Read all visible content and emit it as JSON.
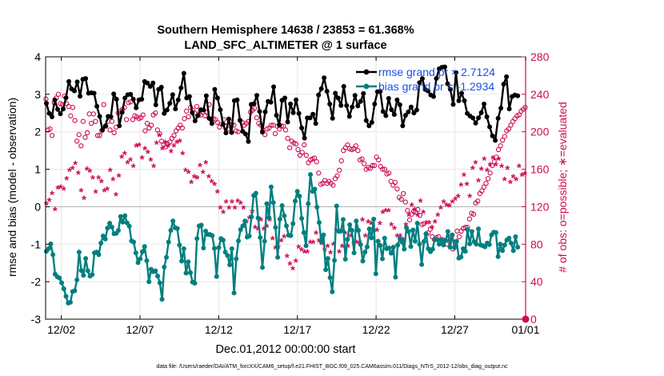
{
  "chart_data": {
    "type": "line",
    "title": "Southern Hemisphere 14638 / 23853 = 61.368%",
    "subtitle": "LAND_SFC_ALTIMETER @ 1 surface",
    "xlabel": "Dec.01,2012 00:00:00 start",
    "ylabel_left": "rmse and bias (model - observation)",
    "ylabel_right": "# of obs: o=possible; ∗=evaluated",
    "footnote": "data file: /Users/raeder/DAI/ATM_forcXX/CAM6_setup/f.e21.FHIST_BGC.f09_025.CAM6assim.011/Diags_NTrS_2012-12/obs_diag_output.nc",
    "xlim": [
      0.5,
      31.0
    ],
    "ylim_left": [
      -3,
      4
    ],
    "ylim_right": [
      0,
      280
    ],
    "xticks": [
      1.5,
      6.5,
      11.5,
      16.5,
      21.5,
      26.5,
      31.0
    ],
    "xtick_labels": [
      "12/02",
      "12/07",
      "12/12",
      "12/17",
      "12/22",
      "12/27",
      "01/01"
    ],
    "yticks_left": [
      -3,
      -2,
      -1,
      0,
      1,
      2,
      3,
      4
    ],
    "ytick_labels_left": [
      "-3",
      "-2",
      "-1",
      "0",
      "1",
      "2",
      "3",
      "4"
    ],
    "yticks_right": [
      0,
      40,
      80,
      120,
      160,
      200,
      240,
      280
    ],
    "ytick_labels_right": [
      "0",
      "40",
      "80",
      "120",
      "160",
      "200",
      "240",
      "280"
    ],
    "zero_line": 0,
    "grid": true,
    "legend": [
      {
        "name": "rmse grand pr = 2.7124",
        "color": "#000000"
      },
      {
        "name": "bias grand pr = -1.2934",
        "color": "#007f7f"
      }
    ],
    "colors": {
      "rmse": "#000000",
      "bias": "#007f7f",
      "obs": "#cc0a55",
      "legend_text": "#1550e6",
      "axis": "#000000",
      "grid": "#e6e6e6"
    },
    "series": [
      {
        "name": "rmse",
        "values": [
          2.76,
          2.49,
          2.4,
          2.85,
          2.6,
          2.48,
          2.61,
          2.91,
          3.34,
          3.14,
          3.09,
          3.33,
          2.95,
          3.4,
          3.42,
          3.03,
          3.04,
          3.03,
          2.68,
          2.41,
          2.05,
          2.15,
          2.41,
          2.4,
          3.01,
          2.87,
          2.16,
          2.52,
          2.9,
          2.99,
          3.0,
          2.87,
          2.64,
          2.85,
          2.87,
          3.34,
          3.3,
          3.21,
          3.3,
          2.72,
          3.13,
          3.19,
          2.49,
          2.58,
          2.76,
          2.99,
          2.61,
          2.85,
          3.17,
          3.56,
          2.9,
          2.94,
          2.51,
          2.29,
          2.43,
          2.59,
          2.58,
          2.96,
          2.36,
          2.22,
          3.13,
          2.9,
          2.59,
          2.2,
          1.97,
          2.34,
          1.98,
          2.83,
          2.85,
          2.31,
          2.01,
          1.94,
          1.74,
          2.73,
          2.75,
          2.97,
          2.54,
          1.99,
          2.53,
          2.81,
          2.79,
          3.2,
          2.44,
          2.18,
          2.84,
          2.9,
          2.26,
          2.74,
          2.51,
          2.85,
          2.49,
          2.1,
          1.83,
          2.37,
          2.37,
          2.47,
          2.22,
          2.98,
          3.15,
          3.44,
          3.08,
          2.74,
          2.36,
          3.03,
          2.9,
          2.7,
          3.21,
          2.7,
          2.41,
          2.66,
          2.97,
          2.69,
          2.81,
          3.02,
          2.3,
          2.16,
          2.25,
          2.74,
          3.07,
          3.08,
          2.54,
          2.43,
          2.89,
          2.59,
          2.46,
          2.85,
          2.72,
          2.16,
          2.44,
          2.53,
          2.66,
          2.5,
          2.58,
          3.31,
          3.42,
          3.13,
          3.09,
          2.98,
          2.94,
          3.42,
          3.68,
          3.72,
          3.73,
          3.28,
          3.13,
          2.73,
          3.58,
          2.83,
          3.03,
          2.83,
          2.49,
          2.42,
          2.37,
          2.23,
          2.37,
          2.51,
          2.74,
          2.4,
          2.13,
          1.89,
          1.77,
          2.36,
          2.63,
          3.27,
          3.47,
          2.61,
          2.94,
          2.98,
          2.96
        ]
      },
      {
        "name": "bias",
        "values": [
          -1.19,
          -1.12,
          -0.99,
          -1.28,
          -1.8,
          -1.87,
          -1.9,
          -2.03,
          -2.19,
          -2.39,
          -2.57,
          -2.55,
          -2.26,
          -2.24,
          -1.95,
          -1.21,
          -1.7,
          -1.83,
          -1.38,
          -1.71,
          -1.85,
          -1.81,
          -1.23,
          -1.21,
          -1.28,
          -0.97,
          -0.78,
          -0.86,
          -0.57,
          -0.44,
          -0.54,
          -0.72,
          -0.71,
          -0.63,
          -0.26,
          -0.41,
          -0.24,
          -0.43,
          -0.52,
          -0.91,
          -0.94,
          -1.23,
          -1.49,
          -1.39,
          -1.2,
          -1.06,
          -1.44,
          -2.0,
          -1.67,
          -1.73,
          -1.71,
          -1.85,
          -2.03,
          -2.47,
          -1.61,
          -1.35,
          -0.94,
          -0.63,
          -0.38,
          -0.56,
          -0.58,
          -1.02,
          -1.45,
          -1.12,
          -1.77,
          -1.47,
          -1.76,
          -2.01,
          -2.04,
          -0.85,
          -0.51,
          -0.49,
          -1.1,
          -0.65,
          -0.74,
          -0.74,
          -0.77,
          -1.11,
          -1.86,
          -1.09,
          -0.85,
          -0.89,
          -1.21,
          -1.3,
          -1.55,
          -1.12,
          -2.3,
          -1.39,
          -0.91,
          -0.61,
          -0.51,
          -0.38,
          -0.81,
          -0.78,
          -0.27,
          0.3,
          0.36,
          -0.3,
          -0.82,
          -1.62,
          -0.92,
          0.08,
          -0.29,
          0.53,
          0.11,
          -0.55,
          -1.35,
          -0.33,
          0.03,
          -0.24,
          -0.51,
          -0.76,
          -0.77,
          -0.45,
          0.15,
          0.41,
          0.28,
          -0.31,
          -0.69,
          -1.04,
          0.08,
          0.86,
          0.41,
          0.47,
          -0.01,
          -0.42,
          -0.94,
          -0.75,
          -1.68,
          -1.38,
          -1.89,
          -2.27,
          -1.43,
          0.02,
          -0.66,
          -0.65,
          -0.34,
          -1.4,
          -0.87,
          -0.48,
          -0.63,
          -1.23,
          -0.38,
          -0.63,
          -1.01,
          -1.45,
          -1.21,
          -1.07,
          -0.59,
          -0.83,
          -0.33,
          -1.79,
          -0.92,
          -1.03,
          -1.39,
          -0.84,
          -1.12,
          -1.1,
          -1.24,
          -1.08,
          -1.88,
          -1.02,
          -0.84,
          -0.94,
          -1.13,
          -0.56,
          -0.66,
          -1.06,
          -0.62,
          -0.92,
          -0.44,
          -1.0,
          -1.54,
          -0.93,
          -0.72,
          -1.12,
          -1.2,
          -1.13,
          -0.86,
          -0.88,
          -1.0,
          -0.89,
          -1.02,
          -0.9,
          -0.66,
          -1.08,
          -0.75,
          -1.09,
          -0.92,
          -1.37,
          -1.34,
          -1.12,
          -1.19,
          -0.61,
          -0.99,
          -0.66,
          -0.93,
          -1.0,
          -0.59,
          -1.02,
          -1.04,
          -1.07,
          -0.97,
          -1.01,
          -0.75,
          -0.68,
          -0.69,
          -1.33,
          -1.0,
          -1.17,
          -1.02,
          -0.89,
          -0.84,
          -0.97,
          -1.17,
          -0.8,
          -1.08
        ]
      },
      {
        "name": "obs_possible",
        "values": [
          235,
          202,
          203,
          196,
          231,
          236,
          240,
          230,
          229,
          238,
          230,
          227,
          217,
          226,
          212,
          190,
          197,
          185,
          211,
          194,
          199,
          219,
          209,
          219,
          211,
          196,
          196,
          201,
          229,
          206,
          211,
          202,
          211,
          199,
          205,
          220,
          222,
          224,
          226,
          213,
          231,
          232,
          213,
          217,
          216,
          214,
          215,
          218,
          201,
          209,
          204,
          207,
          218,
          220,
          202,
          198,
          190,
          186,
          184,
          187,
          189,
          193,
          196,
          201,
          204,
          207,
          204,
          214,
          222,
          216,
          226,
          223,
          220,
          227,
          219,
          218,
          221,
          217,
          221,
          229,
          213,
          214,
          213,
          210,
          205,
          208,
          213,
          206,
          203,
          211,
          208,
          207,
          201,
          200,
          212,
          210,
          207,
          209,
          211,
          221,
          223,
          225,
          215,
          209,
          207,
          202,
          197,
          203,
          204,
          207,
          207,
          198,
          206,
          203,
          206,
          206,
          202,
          193,
          183,
          190,
          188,
          187,
          181,
          175,
          178,
          186,
          175,
          167,
          170,
          171,
          172,
          168,
          156,
          144,
          145,
          148,
          145,
          147,
          145,
          143,
          150,
          153,
          159,
          169,
          180,
          183,
          186,
          182,
          181,
          182,
          185,
          180,
          170,
          171,
          166,
          160,
          162,
          161,
          164,
          164,
          173,
          170,
          163,
          160,
          160,
          155,
          156,
          147,
          143,
          146,
          139,
          130,
          128,
          134,
          125,
          116,
          106,
          112,
          115,
          114,
          117,
          111,
          101,
          102,
          91,
          92,
          96,
          88,
          85,
          87,
          88,
          83,
          85,
          84,
          80,
          86,
          88,
          75,
          82,
          94,
          88,
          94,
          97,
          98,
          98,
          107,
          113,
          112,
          124,
          126,
          134,
          137,
          141,
          145,
          150,
          156,
          164,
          168,
          173,
          181,
          185,
          191,
          195,
          201,
          203,
          207,
          211,
          214,
          217,
          218,
          222,
          224,
          226
        ]
      },
      {
        "name": "obs_evaluated",
        "values": [
          122,
          126,
          133,
          116,
          139,
          140,
          138,
          149,
          158,
          160,
          165,
          155,
          136,
          128,
          159,
          157,
          150,
          135,
          150,
          146,
          136,
          138,
          158,
          148,
          132,
          152,
          172,
          176,
          166,
          169,
          162,
          184,
          185,
          171,
          181,
          177,
          169,
          162,
          187,
          195,
          181,
          188,
          184,
          178,
          184,
          188,
          189,
          176,
          158,
          156,
          145,
          151,
          150,
          163,
          156,
          166,
          151,
          146,
          143,
          135,
          118,
          113,
          124,
          118,
          124,
          118,
          125,
          123,
          118,
          103,
          107,
          114,
          97,
          95,
          105,
          95,
          98,
          105,
          85,
          75,
          76,
          83,
          87,
          66,
          58,
          53,
          61,
          76,
          73,
          71,
          71,
          81,
          81,
          91,
          83,
          80,
          73,
          77,
          70,
          79,
          94,
          71,
          77,
          91,
          77,
          88,
          80,
          81,
          81,
          105,
          88,
          103,
          101,
          94,
          94,
          101,
          113,
          115,
          115,
          100,
          96,
          88,
          88,
          84,
          100,
          110,
          121,
          116,
          110,
          125,
          113,
          102,
          102,
          97,
          103,
          110,
          118,
          124,
          121,
          120,
          124,
          127,
          130,
          142,
          153,
          143,
          130,
          160,
          166,
          147,
          159,
          170,
          158,
          164,
          171,
          164,
          170,
          162,
          148,
          160,
          145,
          151,
          148,
          162,
          153,
          154
        ]
      }
    ]
  }
}
